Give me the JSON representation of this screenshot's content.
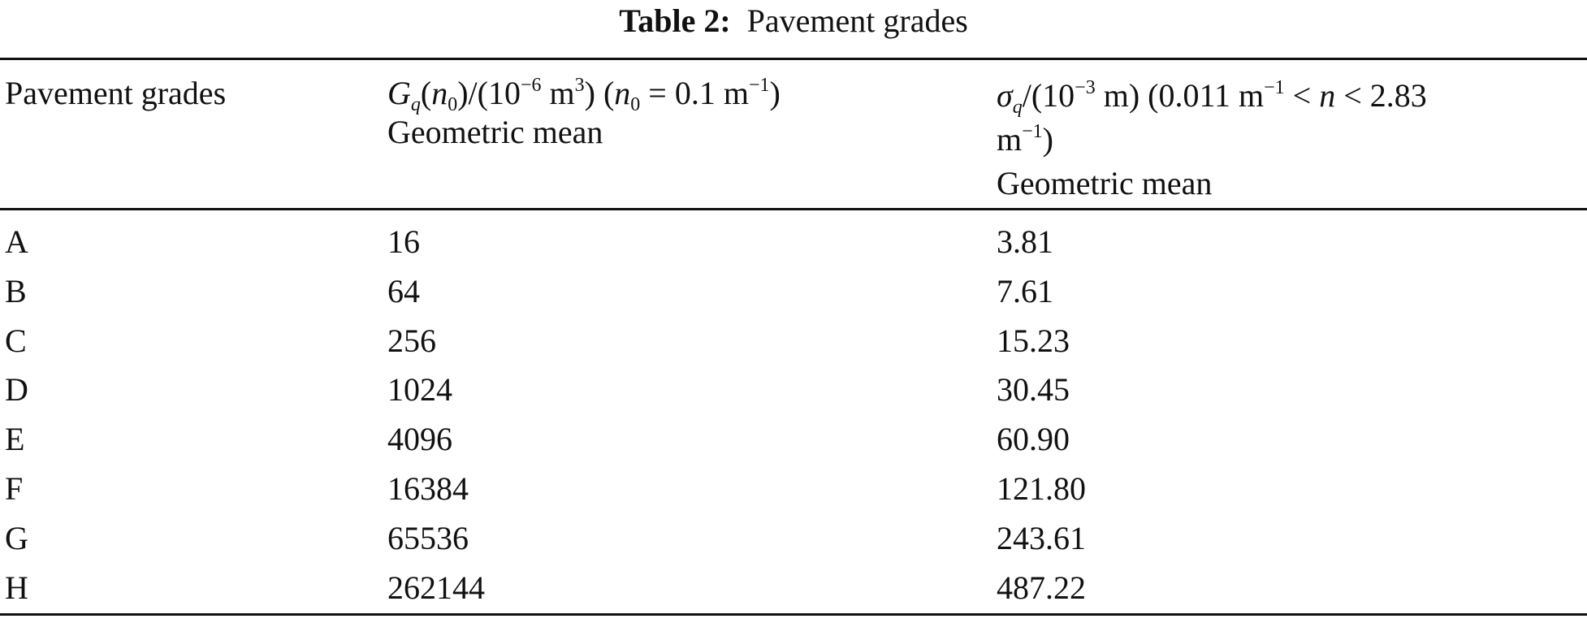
{
  "caption": {
    "label": "Table 2:",
    "text": "Pavement grades"
  },
  "table": {
    "header": {
      "col0": "Pavement grades",
      "col1": {
        "parts": [
          "G",
          "q",
          "(",
          "n",
          "0",
          ")/(10",
          "−6",
          " m",
          "3",
          ") (",
          "n",
          "0",
          " = 0.1 m",
          "−1",
          ")"
        ],
        "stat": "Geometric mean"
      },
      "col2": {
        "parts": [
          "σ",
          "q",
          "/(10",
          "−3",
          " m) (0.011 m",
          "−1",
          " < ",
          "n",
          " < 2.83",
          "m",
          "−1",
          ")"
        ],
        "stat": "Geometric mean"
      }
    },
    "rows": [
      [
        "A",
        "16",
        "3.81"
      ],
      [
        "B",
        "64",
        "7.61"
      ],
      [
        "C",
        "256",
        "15.23"
      ],
      [
        "D",
        "1024",
        "30.45"
      ],
      [
        "E",
        "4096",
        "60.90"
      ],
      [
        "F",
        "16384",
        "121.80"
      ],
      [
        "G",
        "65536",
        "243.61"
      ],
      [
        "H",
        "262144",
        "487.22"
      ]
    ]
  }
}
